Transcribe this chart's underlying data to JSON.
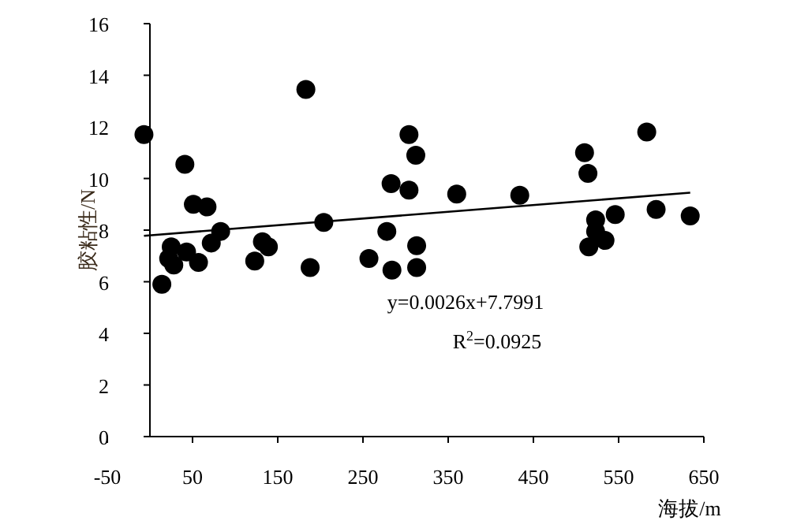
{
  "chart_data": {
    "type": "scatter",
    "xlabel": "海拔/m",
    "ylabel": "胶粘性/N",
    "xlim": [
      -50,
      650
    ],
    "xticks": [
      -50,
      50,
      150,
      250,
      350,
      450,
      550,
      650
    ],
    "ylim": [
      0,
      16
    ],
    "yticks": [
      0,
      2,
      4,
      6,
      8,
      10,
      12,
      14,
      16
    ],
    "grid": false,
    "annotations": [
      "y=0.0026x+7.7991",
      "R$^{2}$=0.0925"
    ],
    "series": [
      {
        "color": "#000000",
        "marker": "circle",
        "x": [
          -7,
          14,
          25,
          22,
          28,
          43,
          41,
          51,
          67,
          57,
          72,
          83,
          123,
          132,
          139,
          183,
          188,
          204,
          257,
          278,
          283,
          284,
          304,
          304,
          312,
          313,
          313,
          360,
          434,
          510,
          514,
          583,
          523,
          523,
          515,
          534,
          546,
          594,
          634
        ],
        "values": [
          11.7,
          5.9,
          7.35,
          6.9,
          6.65,
          7.15,
          10.55,
          9.0,
          8.9,
          6.75,
          7.5,
          7.95,
          6.8,
          7.55,
          7.35,
          13.45,
          6.55,
          8.3,
          6.9,
          7.95,
          9.8,
          6.45,
          11.7,
          9.55,
          10.9,
          7.4,
          6.55,
          9.4,
          9.35,
          11.0,
          10.2,
          11.8,
          8.4,
          7.95,
          7.35,
          7.6,
          8.6,
          8.8,
          8.55
        ]
      },
      {
        "type": "line",
        "color": "#000000",
        "x": [
          -7,
          634
        ],
        "values": [
          7.78,
          9.45
        ]
      }
    ]
  }
}
